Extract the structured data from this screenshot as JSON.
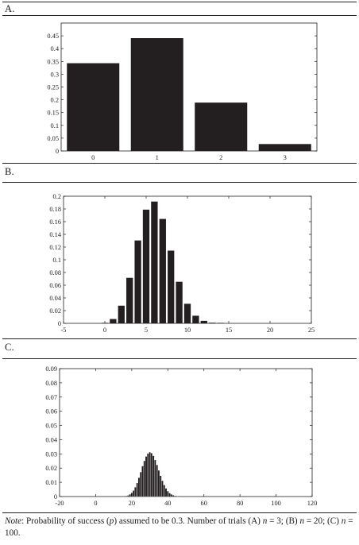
{
  "panels": [
    {
      "label": "A."
    },
    {
      "label": "B."
    },
    {
      "label": "C."
    }
  ],
  "note": {
    "prefix": "Note",
    "text_1": ": Probability of success (",
    "p": "p",
    "text_2": ") assumed to be 0.3. Number of trials (A) ",
    "n1": "n",
    "text_3": " = 3; (B) ",
    "n2": "n",
    "text_4": " = 20; (C) ",
    "n3": "n",
    "text_5": " = 100."
  },
  "chart_data": [
    {
      "type": "bar",
      "title": "",
      "xlabel": "",
      "ylabel": "",
      "categories": [
        "0",
        "1",
        "2",
        "3"
      ],
      "values": [
        0.343,
        0.441,
        0.189,
        0.027
      ],
      "ylim": [
        0,
        0.5
      ],
      "yticks": [
        0,
        0.05,
        0.1,
        0.15,
        0.2,
        0.25,
        0.3,
        0.35,
        0.4,
        0.45
      ],
      "ytick_labels": [
        "0",
        "0.05",
        "0.1",
        "0.15",
        "0.2",
        "0.25",
        "0.3",
        "0.35",
        "0.4",
        "0.45"
      ]
    },
    {
      "type": "bar",
      "title": "",
      "xlabel": "",
      "ylabel": "",
      "x": [
        0,
        1,
        2,
        3,
        4,
        5,
        6,
        7,
        8,
        9,
        10,
        11,
        12,
        13,
        14,
        15,
        16,
        17,
        18,
        19,
        20
      ],
      "values": [
        0.0008,
        0.0068,
        0.0278,
        0.0716,
        0.1304,
        0.1789,
        0.1916,
        0.1643,
        0.1144,
        0.0654,
        0.0308,
        0.012,
        0.0039,
        0.001,
        0.0002,
        0,
        0,
        0,
        0,
        0,
        0
      ],
      "xlim": [
        -5,
        25
      ],
      "ylim": [
        0,
        0.2
      ],
      "xticks": [
        -5,
        0,
        5,
        10,
        15,
        20,
        25
      ],
      "xtick_labels": [
        "-5",
        "0",
        "5",
        "10",
        "15",
        "20",
        "25"
      ],
      "yticks": [
        0,
        0.02,
        0.04,
        0.06,
        0.08,
        0.1,
        0.12,
        0.14,
        0.16,
        0.18,
        0.2
      ],
      "ytick_labels": [
        "0",
        "0.02",
        "0.04",
        "0.06",
        "0.08",
        "0.1",
        "0.12",
        "0.14",
        "0.16",
        "0.18",
        "0.2"
      ]
    },
    {
      "type": "bar",
      "title": "",
      "xlabel": "",
      "ylabel": "",
      "x": [
        15,
        16,
        17,
        18,
        19,
        20,
        21,
        22,
        23,
        24,
        25,
        26,
        27,
        28,
        29,
        30,
        31,
        32,
        33,
        34,
        35,
        36,
        37,
        38,
        39,
        40,
        41,
        42,
        43,
        44,
        45,
        46
      ],
      "values": [
        0.0001,
        0.0002,
        0.0004,
        0.0008,
        0.0015,
        0.0026,
        0.0042,
        0.0065,
        0.0095,
        0.0132,
        0.0172,
        0.0214,
        0.0251,
        0.0282,
        0.0302,
        0.0312,
        0.0305,
        0.0286,
        0.0257,
        0.0222,
        0.0184,
        0.0146,
        0.0111,
        0.0081,
        0.0057,
        0.0038,
        0.0024,
        0.0015,
        0.0009,
        0.0005,
        0.0003,
        0.0001
      ],
      "xlim": [
        -20,
        120
      ],
      "ylim": [
        0,
        0.09
      ],
      "xticks": [
        -20,
        0,
        20,
        40,
        60,
        80,
        100,
        120
      ],
      "xtick_labels": [
        "-20",
        "0",
        "20",
        "40",
        "60",
        "80",
        "100",
        "120"
      ],
      "yticks": [
        0,
        0.01,
        0.02,
        0.03,
        0.04,
        0.05,
        0.06,
        0.07,
        0.08,
        0.09
      ],
      "ytick_labels": [
        "0",
        "0.01",
        "0.02",
        "0.03",
        "0.04",
        "0.05",
        "0.06",
        "0.07",
        "0.08",
        "0.09"
      ]
    }
  ]
}
